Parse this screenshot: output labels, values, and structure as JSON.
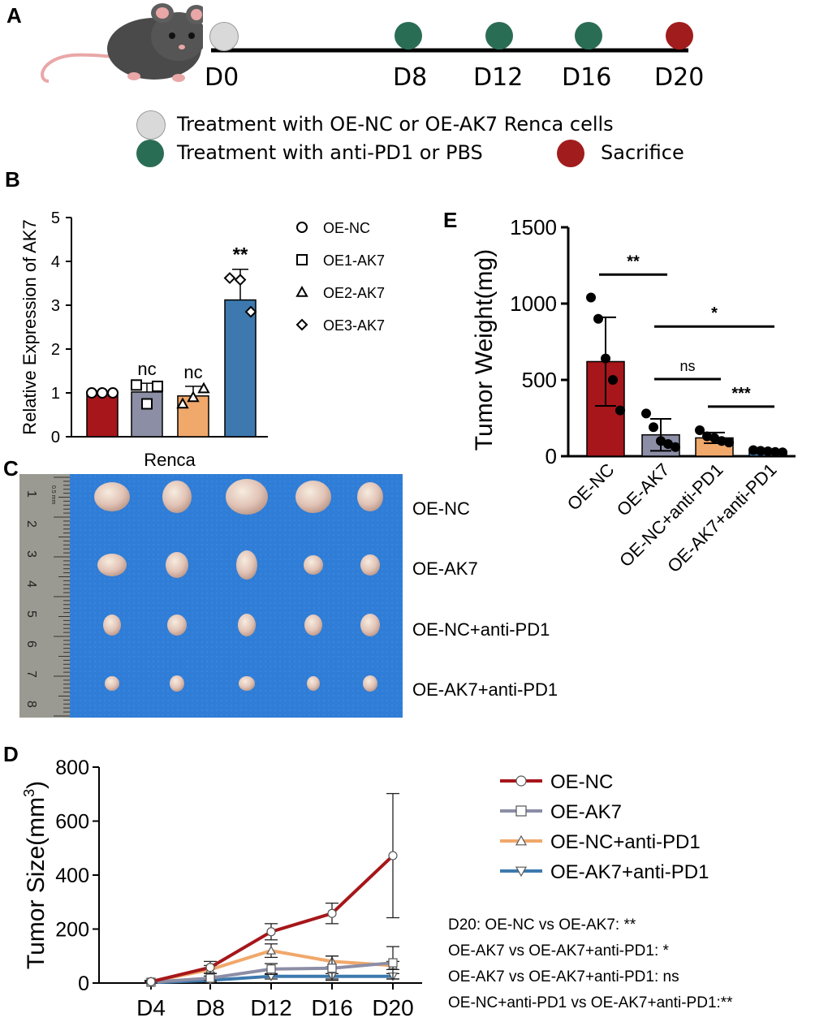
{
  "panels": {
    "a": "A",
    "b": "B",
    "c": "C",
    "d": "D",
    "e": "E"
  },
  "colors": {
    "oe_nc": "#a6161a",
    "oe_ak7": "#8c8ea6",
    "oe_nc_pd1": "#f0a86b",
    "oe_ak7_pd1": "#3d79ae",
    "grey_dot": "#d9d9d9",
    "green_dot": "#2a6d55",
    "red_dot": "#a11c1c",
    "blue_bg": "#2f7dd6"
  },
  "timeline": {
    "days": [
      "D0",
      "D8",
      "D12",
      "D16",
      "D20"
    ],
    "legend": {
      "grey": "Treatment with OE-NC or OE-AK7 Renca cells",
      "green": "Treatment with anti-PD1 or PBS",
      "red": "Sacrifice"
    }
  },
  "photo": {
    "rows": [
      "OE-NC",
      "OE-AK7",
      "OE-NC+anti-PD1",
      "OE-AK7+anti-PD1"
    ],
    "ruler_numbers": [
      "1",
      "2",
      "3",
      "4",
      "5",
      "6",
      "7",
      "8"
    ],
    "ruler_unit": "0.5 mm"
  },
  "chart_data": [
    {
      "panel": "B",
      "type": "bar",
      "title": "",
      "ylabel": "Relative Expression of AK7",
      "xlabel": "Renca",
      "ylim": [
        0,
        5
      ],
      "yticks": [
        "0",
        "1",
        "2",
        "3",
        "4",
        "5"
      ],
      "categories": [
        "OE-NC",
        "OE1-AK7",
        "OE2-AK7",
        "OE3-AK7"
      ],
      "values": [
        1.0,
        1.02,
        0.93,
        3.12
      ],
      "errors": [
        0.0,
        0.2,
        0.22,
        0.7
      ],
      "significance": [
        "",
        "nc",
        "nc",
        "**"
      ],
      "points": [
        [
          1.0,
          1.0,
          1.0
        ],
        [
          1.18,
          0.75,
          1.15
        ],
        [
          0.75,
          0.9,
          1.1
        ],
        [
          3.62,
          3.58,
          2.85
        ]
      ],
      "markers": [
        "circle",
        "square",
        "triangle",
        "diamond"
      ],
      "legend": [
        "OE-NC",
        "OE1-AK7",
        "OE2-AK7",
        "OE3-AK7"
      ]
    },
    {
      "panel": "E",
      "type": "bar",
      "title": "",
      "ylabel": "Tumor Weight(mg)",
      "ylim": [
        0,
        1500
      ],
      "yticks": [
        "0",
        "500",
        "1000",
        "1500"
      ],
      "categories": [
        "OE-NC",
        "OE-AK7",
        "OE-NC+anti-PD1",
        "OE-AK7+anti-PD1"
      ],
      "values": [
        620,
        140,
        120,
        30
      ],
      "errors": [
        290,
        105,
        35,
        10
      ],
      "points": [
        [
          1040,
          900,
          640,
          500,
          300
        ],
        [
          280,
          190,
          100,
          80,
          60
        ],
        [
          170,
          130,
          120,
          100,
          90
        ],
        [
          40,
          35,
          32,
          28,
          25
        ]
      ],
      "comparisons": [
        {
          "from": 0,
          "to": 1,
          "label": "**",
          "y": 1190
        },
        {
          "from": 1,
          "to": 3,
          "label": "*",
          "y": 850
        },
        {
          "from": 1,
          "to": 2,
          "label": "ns",
          "y": 505
        },
        {
          "from": 2,
          "to": 3,
          "label": "***",
          "y": 325
        }
      ]
    },
    {
      "panel": "D",
      "type": "line",
      "title": "",
      "ylabel": "Tumor Size(mm",
      "ylabel_sup": "3",
      "ylabel_end": ")",
      "ylim": [
        0,
        800
      ],
      "yticks": [
        "0",
        "200",
        "400",
        "600",
        "800"
      ],
      "x": [
        "D4",
        "D8",
        "D12",
        "D16",
        "D20"
      ],
      "series": [
        {
          "name": "OE-NC",
          "marker": "circle",
          "values": [
            5,
            58,
            190,
            258,
            472
          ],
          "errors": [
            5,
            22,
            30,
            38,
            230
          ]
        },
        {
          "name": "OE-AK7",
          "marker": "square",
          "values": [
            3,
            18,
            52,
            55,
            75
          ],
          "errors": [
            3,
            8,
            20,
            45,
            60
          ]
        },
        {
          "name": "OE-NC+anti-PD1",
          "marker": "triangle",
          "values": [
            5,
            50,
            120,
            80,
            65
          ],
          "errors": [
            4,
            15,
            25,
            20,
            15
          ]
        },
        {
          "name": "OE-AK7+anti-PD1",
          "marker": "triangle-down",
          "values": [
            2,
            10,
            25,
            25,
            25
          ],
          "errors": [
            2,
            5,
            10,
            10,
            10
          ]
        }
      ],
      "stats": [
        "D20: OE-NC vs OE-AK7: **",
        "OE-AK7 vs OE-AK7+anti-PD1: *",
        "OE-AK7 vs OE-AK7+anti-PD1: ns",
        "OE-NC+anti-PD1 vs OE-AK7+anti-PD1:**"
      ]
    }
  ]
}
